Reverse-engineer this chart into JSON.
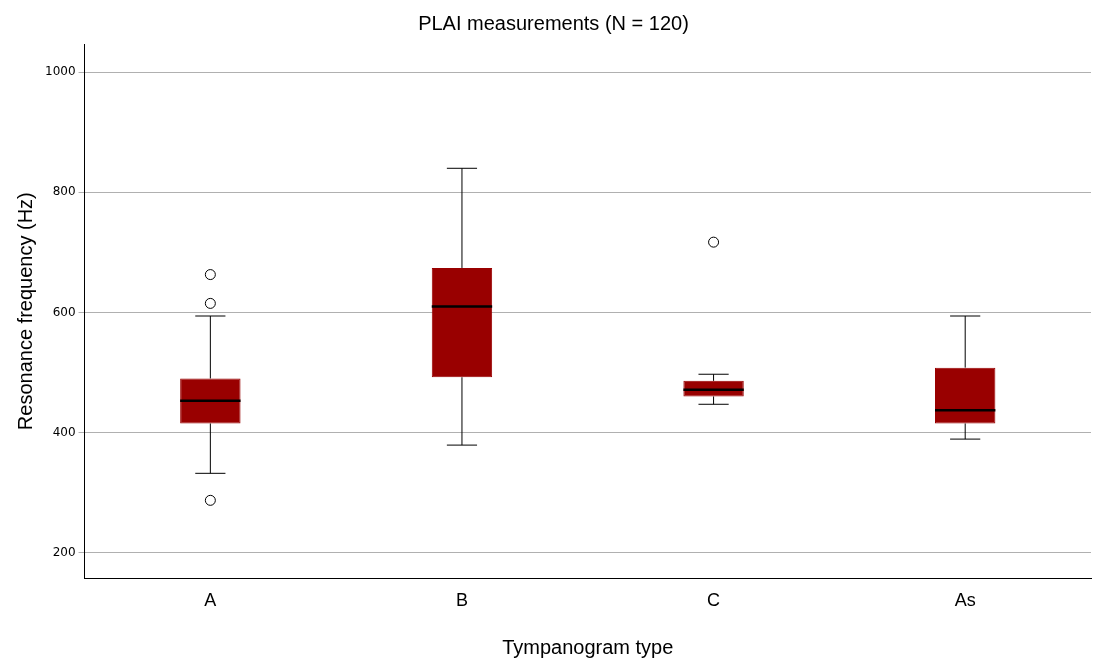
{
  "chart_data": {
    "type": "box",
    "title": "PLAI measurements (N = 120)",
    "xlabel": "Tympanogram type",
    "ylabel": "Resonance frequency (Hz)",
    "categories": [
      "A",
      "B",
      "C",
      "As"
    ],
    "color": "#990000",
    "boxes": [
      {
        "low": 332,
        "q1": 415,
        "median": 453,
        "q3": 490,
        "high": 594,
        "outliers": [
          663,
          615,
          287
        ]
      },
      {
        "low": 379,
        "q1": 492,
        "median": 610,
        "q3": 674,
        "high": 840
      },
      {
        "low": 447,
        "q1": 460,
        "median": 471,
        "q3": 486,
        "high": 497,
        "outliers": [
          717
        ]
      },
      {
        "low": 389,
        "q1": 415,
        "median": 437,
        "q3": 508,
        "high": 594
      }
    ],
    "ylim": [
      157,
      1047
    ],
    "yticks": [
      200,
      400,
      600,
      800,
      1000
    ],
    "grid": "y",
    "marker": "circle"
  }
}
